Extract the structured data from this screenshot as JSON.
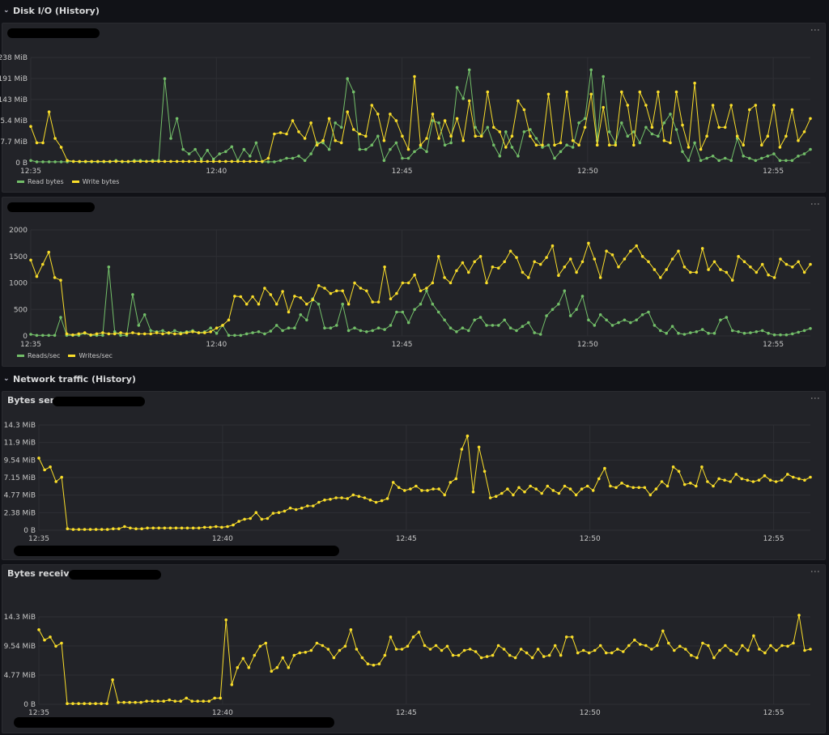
{
  "rows": {
    "disk": {
      "title": "Disk I/O (History)"
    },
    "network": {
      "title": "Network traffic (History)"
    }
  },
  "colors": {
    "green": "#73bf69",
    "yellow": "#fade2a",
    "grid": "#2e2f34",
    "axis": "#c7c7c7"
  },
  "panels": {
    "bytes_sent": {
      "title": "Bytes sent"
    },
    "bytes_received": {
      "title": "Bytes received"
    }
  },
  "chart_data": [
    {
      "type": "line",
      "title": "",
      "x_start": "12:35",
      "x_end": "12:56",
      "x_ticks": [
        "12:35",
        "12:40",
        "12:45",
        "12:50",
        "12:55"
      ],
      "y_ticks": [
        "0 B",
        "47.7 MiB",
        "95.4 MiB",
        "143 MiB",
        "191 MiB",
        "238 MiB"
      ],
      "ylim": [
        0,
        238
      ],
      "y_unit": "MiB",
      "legend": "bottom-left",
      "series": [
        {
          "name": "Read bytes",
          "color": "#73bf69",
          "values": [
            5,
            2,
            2,
            2,
            2,
            2,
            2,
            3,
            2,
            2,
            2,
            2,
            2,
            2,
            5,
            2,
            2,
            5,
            5,
            3,
            5,
            5,
            190,
            55,
            100,
            30,
            20,
            30,
            8,
            28,
            8,
            20,
            25,
            36,
            5,
            30,
            15,
            45,
            2,
            2,
            2,
            5,
            10,
            10,
            15,
            5,
            20,
            45,
            45,
            30,
            90,
            80,
            190,
            160,
            30,
            30,
            40,
            60,
            5,
            30,
            45,
            10,
            10,
            25,
            35,
            25,
            95,
            90,
            40,
            45,
            170,
            145,
            210,
            80,
            60,
            80,
            40,
            15,
            70,
            35,
            15,
            70,
            75,
            55,
            35,
            40,
            10,
            25,
            40,
            35,
            90,
            100,
            210,
            50,
            195,
            70,
            45,
            90,
            60,
            70,
            45,
            80,
            65,
            60,
            90,
            110,
            75,
            25,
            5,
            45,
            5,
            10,
            15,
            5,
            10,
            5,
            55,
            15,
            10,
            5,
            10,
            15,
            20,
            5,
            5,
            5,
            15,
            20,
            30
          ]
        },
        {
          "name": "Write bytes",
          "color": "#fade2a",
          "values": [
            82,
            45,
            45,
            115,
            55,
            35,
            5,
            3,
            3,
            3,
            3,
            3,
            3,
            3,
            3,
            3,
            3,
            3,
            3,
            3,
            3,
            3,
            3,
            3,
            3,
            3,
            3,
            3,
            3,
            3,
            3,
            3,
            3,
            3,
            3,
            3,
            3,
            3,
            3,
            10,
            65,
            68,
            65,
            95,
            70,
            55,
            90,
            40,
            50,
            100,
            50,
            45,
            115,
            75,
            65,
            60,
            130,
            110,
            50,
            110,
            95,
            60,
            30,
            195,
            40,
            55,
            110,
            55,
            95,
            60,
            100,
            50,
            140,
            60,
            60,
            160,
            80,
            70,
            35,
            60,
            140,
            120,
            60,
            40,
            40,
            155,
            40,
            45,
            160,
            50,
            40,
            80,
            155,
            40,
            125,
            40,
            40,
            160,
            130,
            40,
            160,
            130,
            80,
            160,
            50,
            45,
            160,
            85,
            35,
            180,
            30,
            60,
            130,
            80,
            80,
            130,
            60,
            40,
            120,
            130,
            40,
            60,
            130,
            35,
            60,
            120,
            50,
            70,
            100
          ]
        }
      ]
    },
    {
      "type": "line",
      "title": "",
      "x_start": "12:35",
      "x_end": "12:56",
      "x_ticks": [
        "12:35",
        "12:40",
        "12:45",
        "12:50",
        "12:55"
      ],
      "y_ticks": [
        "0",
        "500",
        "1000",
        "1500",
        "2000"
      ],
      "ylim": [
        0,
        2000
      ],
      "legend": "bottom-left",
      "series": [
        {
          "name": "Reads/sec",
          "color": "#73bf69",
          "values": [
            30,
            10,
            10,
            10,
            10,
            350,
            10,
            10,
            10,
            50,
            10,
            10,
            10,
            1300,
            80,
            10,
            10,
            780,
            200,
            400,
            100,
            80,
            100,
            50,
            100,
            60,
            80,
            100,
            60,
            80,
            150,
            50,
            200,
            10,
            10,
            10,
            40,
            60,
            80,
            40,
            90,
            200,
            100,
            150,
            150,
            400,
            300,
            700,
            600,
            150,
            150,
            200,
            600,
            100,
            150,
            100,
            80,
            100,
            150,
            120,
            200,
            450,
            450,
            250,
            500,
            600,
            850,
            600,
            450,
            300,
            150,
            80,
            150,
            100,
            300,
            350,
            200,
            200,
            200,
            300,
            150,
            100,
            180,
            250,
            60,
            30,
            380,
            500,
            600,
            850,
            380,
            500,
            750,
            300,
            200,
            400,
            300,
            200,
            250,
            300,
            250,
            300,
            400,
            450,
            200,
            100,
            50,
            180,
            50,
            30,
            60,
            80,
            120,
            50,
            50,
            300,
            350,
            100,
            80,
            50,
            60,
            80,
            100,
            50,
            20,
            20,
            20,
            40,
            70,
            100,
            140
          ]
        },
        {
          "name": "Writes/sec",
          "color": "#fade2a",
          "values": [
            1430,
            1120,
            1350,
            1580,
            1100,
            1050,
            40,
            20,
            40,
            60,
            20,
            40,
            60,
            40,
            40,
            60,
            40,
            60,
            40,
            40,
            40,
            60,
            40,
            60,
            40,
            40,
            60,
            80,
            60,
            60,
            80,
            150,
            200,
            300,
            750,
            740,
            600,
            740,
            600,
            900,
            780,
            600,
            840,
            450,
            750,
            720,
            600,
            680,
            950,
            900,
            800,
            850,
            850,
            600,
            1000,
            900,
            850,
            640,
            640,
            1300,
            700,
            800,
            1000,
            1000,
            1150,
            850,
            900,
            1000,
            1500,
            1100,
            1000,
            1230,
            1380,
            1200,
            1400,
            1500,
            1000,
            1300,
            1280,
            1400,
            1600,
            1480,
            1200,
            1100,
            1400,
            1350,
            1480,
            1700,
            1140,
            1300,
            1450,
            1200,
            1400,
            1750,
            1450,
            1100,
            1600,
            1530,
            1300,
            1450,
            1600,
            1700,
            1500,
            1400,
            1250,
            1100,
            1250,
            1450,
            1600,
            1300,
            1200,
            1200,
            1650,
            1250,
            1400,
            1250,
            1200,
            1050,
            1500,
            1400,
            1300,
            1200,
            1350,
            1150,
            1100,
            1450,
            1350,
            1300,
            1400,
            1200,
            1350
          ]
        }
      ]
    },
    {
      "type": "line",
      "title": "Bytes sent",
      "x_start": "12:35",
      "x_end": "12:56",
      "x_ticks": [
        "12:35",
        "12:40",
        "12:45",
        "12:50",
        "12:55"
      ],
      "y_ticks": [
        "0 B",
        "2.38 MiB",
        "4.77 MiB",
        "7.15 MiB",
        "9.54 MiB",
        "11.9 MiB",
        "14.3 MiB"
      ],
      "ylim": [
        0,
        14.3
      ],
      "y_unit": "MiB",
      "series": [
        {
          "name": "",
          "color": "#fade2a",
          "values": [
            9.8,
            8.2,
            8.6,
            6.6,
            7.2,
            0.2,
            0.1,
            0.1,
            0.1,
            0.1,
            0.1,
            0.1,
            0.1,
            0.2,
            0.2,
            0.5,
            0.3,
            0.2,
            0.2,
            0.3,
            0.3,
            0.3,
            0.3,
            0.3,
            0.3,
            0.3,
            0.3,
            0.3,
            0.3,
            0.4,
            0.4,
            0.5,
            0.4,
            0.5,
            0.7,
            1.2,
            1.5,
            1.6,
            2.4,
            1.5,
            1.6,
            2.3,
            2.4,
            2.6,
            3.0,
            2.8,
            3.0,
            3.3,
            3.3,
            3.8,
            4.1,
            4.2,
            4.4,
            4.4,
            4.3,
            4.8,
            4.6,
            4.4,
            4.1,
            3.8,
            4.0,
            4.3,
            6.5,
            5.8,
            5.4,
            5.6,
            6.0,
            5.4,
            5.4,
            5.6,
            5.6,
            4.8,
            6.5,
            7.0,
            11.0,
            12.8,
            5.2,
            11.3,
            8.0,
            4.4,
            4.6,
            5.0,
            5.6,
            4.8,
            5.8,
            5.2,
            6.0,
            5.6,
            5.0,
            6.0,
            5.4,
            5.0,
            6.0,
            5.6,
            4.8,
            5.6,
            6.0,
            5.4,
            7.0,
            8.4,
            6.0,
            5.8,
            6.4,
            6.0,
            5.8,
            5.8,
            5.8,
            4.8,
            5.6,
            6.6,
            6.0,
            8.6,
            8.0,
            6.2,
            6.4,
            6.0,
            8.6,
            6.6,
            6.0,
            7.0,
            6.8,
            6.6,
            7.6,
            7.0,
            6.8,
            6.6,
            6.8,
            7.4,
            6.8,
            6.6,
            6.8,
            7.6,
            7.2,
            7.0,
            6.8,
            7.2
          ]
        }
      ]
    },
    {
      "type": "line",
      "title": "Bytes received",
      "x_start": "12:35",
      "x_end": "12:56",
      "x_ticks": [
        "12:35",
        "12:40",
        "12:45",
        "12:50",
        "12:55"
      ],
      "y_ticks": [
        "0 B",
        "4.77 MiB",
        "9.54 MiB",
        "14.3 MiB"
      ],
      "ylim": [
        0,
        14.3
      ],
      "y_unit": "MiB",
      "series": [
        {
          "name": "",
          "color": "#fade2a",
          "values": [
            12.2,
            10.5,
            11.0,
            9.5,
            10.0,
            0.1,
            0.1,
            0.1,
            0.1,
            0.1,
            0.1,
            0.1,
            0.1,
            4.0,
            0.3,
            0.3,
            0.3,
            0.3,
            0.3,
            0.5,
            0.5,
            0.5,
            0.5,
            0.7,
            0.5,
            0.5,
            1.0,
            0.5,
            0.5,
            0.5,
            0.5,
            1.0,
            1.0,
            13.8,
            3.2,
            6.0,
            7.5,
            6.0,
            8.0,
            9.5,
            10.0,
            5.4,
            6.0,
            7.6,
            6.0,
            8.0,
            8.4,
            8.5,
            8.8,
            10.0,
            9.6,
            9.0,
            7.6,
            8.8,
            9.5,
            12.2,
            9.0,
            7.6,
            6.6,
            6.4,
            6.6,
            8.0,
            11.0,
            9.0,
            9.0,
            9.5,
            11.0,
            11.8,
            9.6,
            9.0,
            9.6,
            8.8,
            9.5,
            8.0,
            8.0,
            8.8,
            9.0,
            8.6,
            7.6,
            7.8,
            8.0,
            9.6,
            9.0,
            8.0,
            7.6,
            9.0,
            8.4,
            7.6,
            9.0,
            7.8,
            8.0,
            9.6,
            8.0,
            11.0,
            11.0,
            8.4,
            8.8,
            8.4,
            8.8,
            9.6,
            8.4,
            8.4,
            9.0,
            8.6,
            9.6,
            10.5,
            9.8,
            9.6,
            9.0,
            9.6,
            12.0,
            10.0,
            8.8,
            9.5,
            9.0,
            8.0,
            7.6,
            10.0,
            9.6,
            7.6,
            8.8,
            9.6,
            8.8,
            8.2,
            9.6,
            8.8,
            11.2,
            9.0,
            8.4,
            9.6,
            8.8,
            9.6,
            9.5,
            10.0,
            15.0,
            8.8,
            9.0
          ]
        }
      ]
    }
  ]
}
